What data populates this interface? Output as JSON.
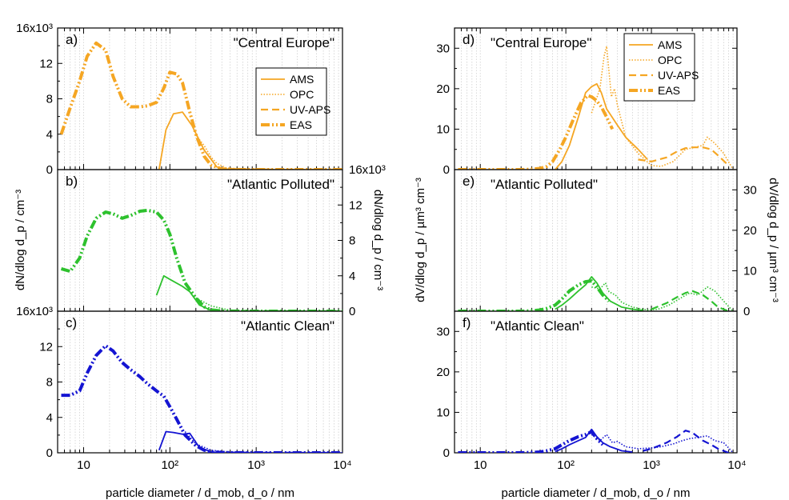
{
  "chart_data": [
    {
      "id": "a",
      "type": "line",
      "panel_label": "a)",
      "region": "\"Central Europe\"",
      "x_scale": "log",
      "xlim": [
        5,
        10000
      ],
      "ylim": [
        0,
        16000
      ],
      "y_tick_values": [
        0,
        4000,
        8000,
        12000,
        16000
      ],
      "y_tick_labels": [
        "0",
        "4",
        "8",
        "12",
        "16x10³"
      ],
      "y_axis_side": "left",
      "legend": "right",
      "series": [
        {
          "name": "AMS",
          "color": "#f5a623",
          "style": "solid",
          "x": [
            75,
            90,
            110,
            140,
            180,
            250,
            350,
            500
          ],
          "y": [
            0,
            4500,
            6300,
            6500,
            5000,
            2200,
            300,
            0
          ]
        },
        {
          "name": "OPC",
          "color": "#f5a623",
          "style": "dotted",
          "x": [
            200,
            250,
            300,
            350,
            450,
            600,
            1000,
            3000,
            10000
          ],
          "y": [
            3900,
            2700,
            1400,
            700,
            200,
            60,
            20,
            10,
            0
          ]
        },
        {
          "name": "UV-APS",
          "color": "#f5a623",
          "style": "dash",
          "x": [
            500,
            800,
            1500,
            3000,
            10000
          ],
          "y": [
            80,
            40,
            20,
            10,
            0
          ]
        },
        {
          "name": "EAS",
          "color": "#f5a623",
          "style": "eas",
          "x": [
            5.5,
            7,
            9,
            11,
            14,
            18,
            22,
            28,
            35,
            45,
            55,
            70,
            85,
            100,
            120,
            140,
            170,
            200,
            250,
            300,
            400,
            600,
            1000,
            10000
          ],
          "y": [
            4000,
            7000,
            10000,
            12800,
            14300,
            13500,
            10500,
            8000,
            7100,
            7100,
            7200,
            7600,
            9200,
            11000,
            10800,
            9800,
            6500,
            4000,
            1500,
            500,
            80,
            10,
            0,
            0
          ]
        }
      ]
    },
    {
      "id": "b",
      "type": "line",
      "panel_label": "b)",
      "region": "\"Atlantic Polluted\"",
      "x_scale": "log",
      "xlim": [
        5,
        10000
      ],
      "ylim": [
        0,
        16000
      ],
      "y_tick_values": [
        0,
        4000,
        8000,
        12000,
        16000
      ],
      "y_tick_labels": [
        "0",
        "4",
        "8",
        "12",
        "16x10³"
      ],
      "y_axis_side": "right",
      "series": [
        {
          "name": "AMS",
          "color": "#2dc12d",
          "style": "solid",
          "x": [
            70,
            85,
            100,
            140,
            170,
            220,
            300,
            400
          ],
          "y": [
            1800,
            4000,
            3600,
            2800,
            2200,
            700,
            100,
            0
          ]
        },
        {
          "name": "OPC",
          "color": "#2dc12d",
          "style": "dotted",
          "x": [
            200,
            300,
            500,
            1000,
            10000
          ],
          "y": [
            1500,
            600,
            100,
            20,
            0
          ]
        },
        {
          "name": "UV-APS",
          "color": "#2dc12d",
          "style": "dash",
          "x": [
            500,
            1000,
            3000,
            10000
          ],
          "y": [
            50,
            30,
            10,
            0
          ]
        },
        {
          "name": "EAS",
          "color": "#2dc12d",
          "style": "eas",
          "x": [
            5.5,
            7,
            9,
            11,
            14,
            18,
            22,
            28,
            35,
            45,
            55,
            70,
            85,
            100,
            120,
            150,
            200,
            250,
            300,
            400,
            600,
            1000,
            10000
          ],
          "y": [
            4800,
            4500,
            6000,
            8500,
            10500,
            11200,
            11000,
            10500,
            10800,
            11300,
            11400,
            11200,
            10300,
            8700,
            6000,
            3200,
            1500,
            500,
            150,
            30,
            5,
            0,
            0
          ]
        }
      ]
    },
    {
      "id": "c",
      "type": "line",
      "panel_label": "c)",
      "region": "\"Atlantic Clean\"",
      "x_scale": "log",
      "xlim": [
        5,
        10000
      ],
      "ylim": [
        0,
        16000
      ],
      "y_tick_values": [
        0,
        4000,
        8000,
        12000,
        16000
      ],
      "y_tick_labels": [
        "0",
        "4",
        "8",
        "12",
        "16x10³"
      ],
      "y_axis_side": "left",
      "x_tick_labels": [
        "10",
        "10²",
        "10³",
        "10⁴"
      ],
      "xlabel": "particle diameter / d_mob, d_o / nm",
      "series": [
        {
          "name": "AMS",
          "color": "#1414d2",
          "style": "solid",
          "x": [
            75,
            90,
            110,
            140,
            170,
            220,
            300,
            400
          ],
          "y": [
            300,
            2400,
            2300,
            2100,
            2200,
            600,
            100,
            0
          ]
        },
        {
          "name": "OPC",
          "color": "#1414d2",
          "style": "dotted",
          "x": [
            150,
            200,
            300,
            500,
            1000,
            10000
          ],
          "y": [
            2400,
            1000,
            300,
            80,
            20,
            0
          ]
        },
        {
          "name": "UV-APS",
          "color": "#1414d2",
          "style": "dash",
          "x": [
            500,
            1000,
            3000,
            10000
          ],
          "y": [
            40,
            20,
            10,
            0
          ]
        },
        {
          "name": "EAS",
          "color": "#1414d2",
          "style": "eas",
          "x": [
            5.5,
            7,
            9,
            11,
            14,
            18,
            22,
            28,
            35,
            45,
            55,
            70,
            85,
            100,
            120,
            150,
            200,
            250,
            300,
            400,
            600,
            1000,
            10000
          ],
          "y": [
            6500,
            6500,
            7000,
            9000,
            11000,
            12100,
            11500,
            10200,
            9400,
            8600,
            7800,
            7000,
            6400,
            5200,
            3800,
            2000,
            800,
            300,
            100,
            30,
            5,
            0,
            0
          ]
        }
      ]
    },
    {
      "id": "d",
      "type": "line",
      "panel_label": "d)",
      "region": "\"Central Europe\"",
      "x_scale": "log",
      "xlim": [
        5,
        10000
      ],
      "ylim": [
        0,
        35
      ],
      "y_tick_values": [
        0,
        10,
        20,
        30
      ],
      "y_tick_labels": [
        "0",
        "10",
        "20",
        "30"
      ],
      "y_axis_side": "left",
      "legend": "top-right",
      "series": [
        {
          "name": "AMS",
          "color": "#f5a623",
          "style": "solid",
          "x": [
            75,
            90,
            110,
            140,
            170,
            200,
            230,
            260,
            300,
            400,
            500,
            700,
            900
          ],
          "y": [
            0,
            2,
            6,
            13,
            19,
            20.5,
            21.2,
            19,
            15,
            11,
            8,
            5,
            2.5
          ]
        },
        {
          "name": "OPC",
          "color": "#f5a623",
          "style": "dotted",
          "x": [
            200,
            250,
            280,
            300,
            340,
            370,
            400,
            500,
            700,
            1000,
            1300,
            1800,
            2500,
            3200,
            4000,
            4500,
            5500,
            7000,
            9000
          ],
          "y": [
            14,
            20,
            28,
            30.5,
            18,
            20,
            16,
            8,
            4,
            1,
            0.8,
            2,
            5,
            5.5,
            6,
            8,
            6.5,
            4,
            0
          ]
        },
        {
          "name": "UV-APS",
          "color": "#f5a623",
          "style": "dash",
          "x": [
            700,
            1000,
            1500,
            2000,
            2500,
            3000,
            4000,
            5000,
            6000,
            8000
          ],
          "y": [
            2.5,
            2,
            3,
            4.5,
            5.3,
            5.5,
            5.5,
            5,
            3.5,
            1
          ]
        },
        {
          "name": "EAS",
          "color": "#f5a623",
          "style": "eas",
          "x": [
            5.5,
            10,
            20,
            30,
            40,
            50,
            60,
            70,
            85,
            100,
            120,
            150,
            180,
            200,
            230,
            260,
            300,
            350
          ],
          "y": [
            0,
            0,
            0,
            0,
            0.1,
            0.3,
            0.8,
            2,
            5,
            8,
            12,
            16.5,
            18.3,
            18,
            17,
            15.5,
            13,
            10
          ]
        }
      ]
    },
    {
      "id": "e",
      "type": "line",
      "panel_label": "e)",
      "region": "\"Atlantic Polluted\"",
      "x_scale": "log",
      "xlim": [
        5,
        10000
      ],
      "ylim": [
        0,
        35
      ],
      "y_tick_values": [
        0,
        10,
        20,
        30
      ],
      "y_tick_labels": [
        "0",
        "10",
        "20",
        "30"
      ],
      "y_axis_side": "right",
      "series": [
        {
          "name": "AMS",
          "color": "#2dc12d",
          "style": "solid",
          "x": [
            75,
            90,
            110,
            140,
            170,
            200,
            230,
            270,
            330,
            450,
            600,
            800
          ],
          "y": [
            0.5,
            1.5,
            3,
            5,
            6.5,
            8.5,
            7,
            4.5,
            2.5,
            1,
            0.5,
            0.2
          ]
        },
        {
          "name": "OPC",
          "color": "#2dc12d",
          "style": "dotted",
          "x": [
            200,
            250,
            290,
            320,
            380,
            450,
            600,
            900,
            1200,
            1600,
            2100,
            2800,
            3500,
            4500,
            5500,
            7000,
            9000
          ],
          "y": [
            6,
            5.5,
            7,
            4.8,
            4,
            2.2,
            1,
            0.3,
            0.5,
            1.5,
            3,
            4.5,
            4,
            6,
            5,
            2.5,
            0
          ]
        },
        {
          "name": "UV-APS",
          "color": "#2dc12d",
          "style": "dash",
          "x": [
            1000,
            1500,
            2000,
            2500,
            3000,
            4000,
            5000,
            6000,
            8000
          ],
          "y": [
            0.5,
            2,
            3.5,
            4.5,
            5,
            4,
            2.5,
            1,
            0
          ]
        },
        {
          "name": "EAS",
          "color": "#2dc12d",
          "style": "eas",
          "x": [
            5.5,
            10,
            20,
            30,
            40,
            50,
            60,
            75,
            90,
            110,
            140,
            170,
            200,
            230,
            270,
            320
          ],
          "y": [
            0,
            0,
            0,
            0,
            0.1,
            0.3,
            0.7,
            1.5,
            3,
            5,
            6.5,
            7.3,
            7.5,
            6,
            4,
            2.5
          ]
        }
      ]
    },
    {
      "id": "f",
      "type": "line",
      "panel_label": "f)",
      "region": "\"Atlantic Clean\"",
      "x_scale": "log",
      "xlim": [
        5,
        10000
      ],
      "ylim": [
        0,
        35
      ],
      "y_tick_values": [
        0,
        10,
        20,
        30
      ],
      "y_tick_labels": [
        "0",
        "10",
        "20",
        "30"
      ],
      "y_axis_side": "left",
      "x_tick_labels": [
        "10",
        "10²",
        "10³",
        "10⁴"
      ],
      "xlabel": "particle diameter / d_mob, d_o / nm",
      "series": [
        {
          "name": "AMS",
          "color": "#1414d2",
          "style": "solid",
          "x": [
            75,
            90,
            110,
            140,
            170,
            200,
            230,
            270,
            330,
            450,
            600
          ],
          "y": [
            0.3,
            1,
            2,
            3,
            3.8,
            5.8,
            4,
            2.5,
            1.5,
            0.5,
            0.2
          ]
        },
        {
          "name": "OPC",
          "color": "#1414d2",
          "style": "dotted",
          "x": [
            200,
            250,
            300,
            350,
            400,
            500,
            700,
            1000,
            1300,
            1800,
            2300,
            2800,
            3500,
            4500,
            5500,
            7000,
            9000
          ],
          "y": [
            4.5,
            3,
            4.5,
            2.5,
            2.8,
            1.5,
            1,
            1.2,
            1.5,
            2.2,
            3,
            3.5,
            3.8,
            4.2,
            3,
            2.5,
            0
          ]
        },
        {
          "name": "UV-APS",
          "color": "#1414d2",
          "style": "dash",
          "x": [
            800,
            1000,
            1500,
            2000,
            2500,
            3000,
            4000,
            5000,
            6000,
            8000
          ],
          "y": [
            0.5,
            1,
            2.5,
            4,
            5.5,
            5,
            3,
            2,
            1,
            0
          ]
        },
        {
          "name": "EAS",
          "color": "#1414d2",
          "style": "eas",
          "x": [
            5.5,
            10,
            20,
            30,
            40,
            50,
            60,
            75,
            90,
            110,
            140,
            170,
            200,
            230,
            270
          ],
          "y": [
            0,
            0,
            0,
            0,
            0.1,
            0.2,
            0.5,
            1,
            2,
            3,
            4,
            4.5,
            5.2,
            3.5,
            2
          ]
        }
      ]
    }
  ],
  "left_y_title": "dN/dlog d_p / cm⁻³",
  "right_y_title": "dN/dlog d_p / cm⁻³",
  "left_y_title_2": "dV/dlog d_p / µm³ cm⁻³",
  "right_y_title_2": "dV/dlog d_p / µm³ cm⁻³",
  "legend_items": [
    "AMS",
    "OPC",
    "UV-APS",
    "EAS"
  ]
}
